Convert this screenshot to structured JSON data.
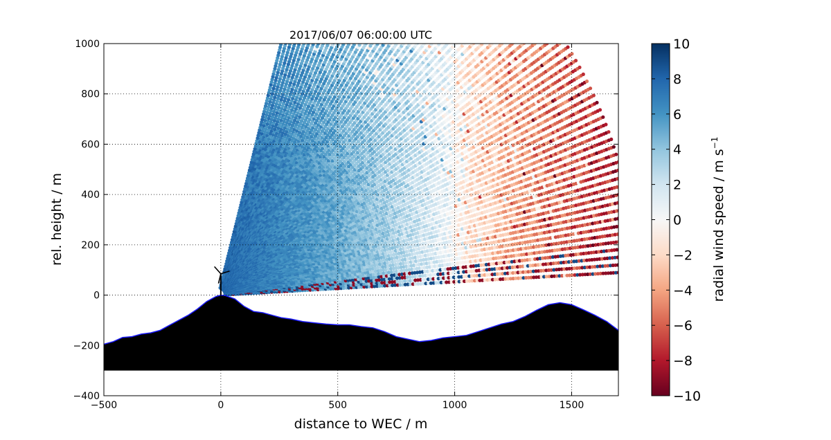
{
  "chart_data": {
    "type": "heatmap",
    "title": "2017/06/07 06:00:00 UTC",
    "xlabel": "distance to WEC / m",
    "ylabel": "rel. height / m",
    "xlim": [
      -500,
      1700
    ],
    "ylim": [
      -400,
      1000
    ],
    "xticks": [
      -500,
      0,
      500,
      1000,
      1500
    ],
    "yticks": [
      -400,
      -200,
      0,
      200,
      400,
      600,
      800,
      1000
    ],
    "xtick_labels": [
      "−500",
      "0",
      "500",
      "1000",
      "1500"
    ],
    "ytick_labels": [
      "−400",
      "−200",
      "0",
      "200",
      "400",
      "600",
      "800",
      "1000"
    ],
    "grid": true,
    "colorbar": {
      "label": "radial wind speed / m s",
      "label_superscript": "−1",
      "min": -10,
      "max": 10,
      "ticks": [
        10,
        8,
        6,
        4,
        2,
        0,
        -2,
        -4,
        -6,
        -8,
        -10
      ],
      "tick_labels": [
        "10",
        "8",
        "6",
        "4",
        "2",
        "0",
        "−2",
        "−4",
        "−6",
        "−8",
        "−10"
      ],
      "colormap": "RdBu_r",
      "colors": [
        "#67001f",
        "#b2182b",
        "#d6604d",
        "#f4a582",
        "#fddbc7",
        "#f7f7f7",
        "#d1e5f0",
        "#92c5de",
        "#4393c3",
        "#2166ac",
        "#053061"
      ]
    },
    "scan": {
      "origin": [
        -10,
        0
      ],
      "elevation_range_deg": [
        3,
        75
      ],
      "max_range_m": 1800,
      "velocity_sign_change_x": 1000,
      "max_speed_left": 8,
      "max_speed_right": -8
    },
    "terrain": {
      "x": [
        -500,
        -460,
        -420,
        -380,
        -340,
        -300,
        -260,
        -220,
        -180,
        -140,
        -100,
        -60,
        -20,
        0,
        20,
        60,
        100,
        140,
        180,
        220,
        260,
        300,
        350,
        400,
        450,
        500,
        550,
        600,
        650,
        700,
        750,
        800,
        850,
        900,
        950,
        1000,
        1050,
        1100,
        1150,
        1200,
        1250,
        1300,
        1350,
        1400,
        1450,
        1500,
        1550,
        1600,
        1650,
        1700
      ],
      "y": [
        -195,
        -185,
        -168,
        -165,
        -155,
        -150,
        -140,
        -120,
        -100,
        -80,
        -55,
        -25,
        -5,
        0,
        -2,
        -15,
        -45,
        -65,
        -70,
        -80,
        -90,
        -95,
        -105,
        -110,
        -115,
        -118,
        -118,
        -125,
        -130,
        -145,
        -165,
        -175,
        -185,
        -180,
        -170,
        -165,
        -160,
        -145,
        -130,
        -115,
        -105,
        -85,
        -60,
        -38,
        -30,
        -38,
        -58,
        -80,
        -105,
        -140
      ],
      "bottom": -300
    },
    "turbine": {
      "x": 0,
      "hub_height": 85,
      "blade_length": 40
    }
  }
}
